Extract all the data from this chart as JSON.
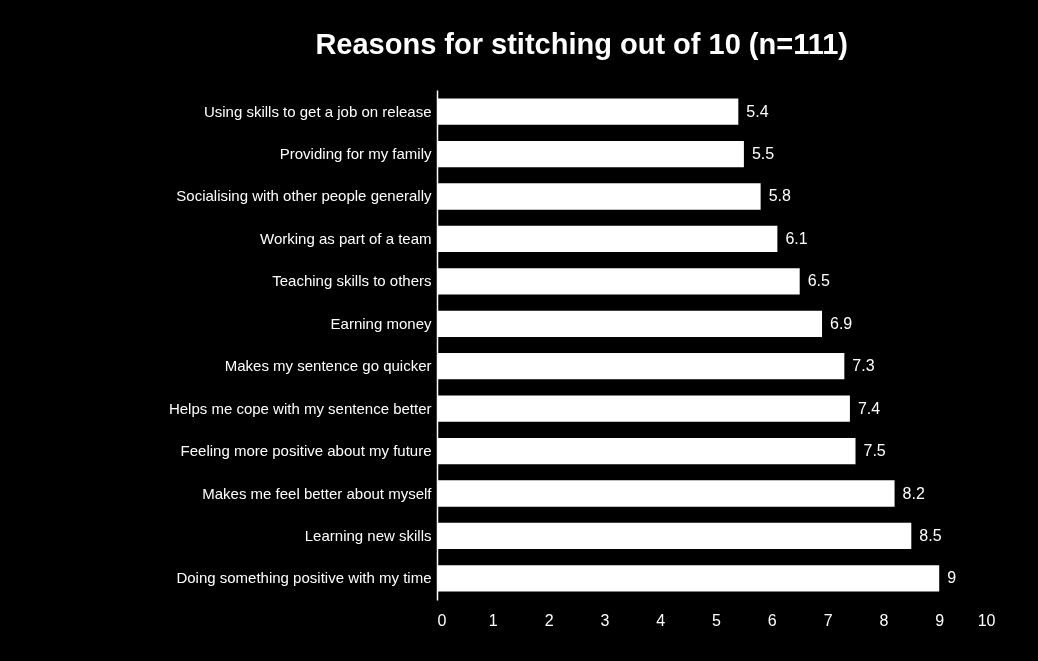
{
  "chart_data": {
    "type": "bar",
    "orientation": "horizontal",
    "title": "Reasons for stitching out of 10 (n=111)",
    "categories": [
      "Using skills to get a job on release",
      "Providing for my family",
      "Socialising with other people generally",
      "Working as part of a team",
      "Teaching skills to others",
      "Earning money",
      "Makes my sentence go quicker",
      "Helps me cope with my sentence better",
      "Feeling more positive about my future",
      "Makes me feel better about myself",
      "Learning new skills",
      "Doing something positive with my time"
    ],
    "values": [
      5.4,
      5.5,
      5.8,
      6.1,
      6.5,
      6.9,
      7.3,
      7.4,
      7.5,
      8.2,
      8.5,
      9
    ],
    "color": "#ffffff",
    "xlim": [
      0,
      10
    ],
    "xticks": [
      0,
      1,
      2,
      3,
      4,
      5,
      6,
      7,
      8,
      9,
      10
    ],
    "data_labels": true,
    "grid": false
  }
}
